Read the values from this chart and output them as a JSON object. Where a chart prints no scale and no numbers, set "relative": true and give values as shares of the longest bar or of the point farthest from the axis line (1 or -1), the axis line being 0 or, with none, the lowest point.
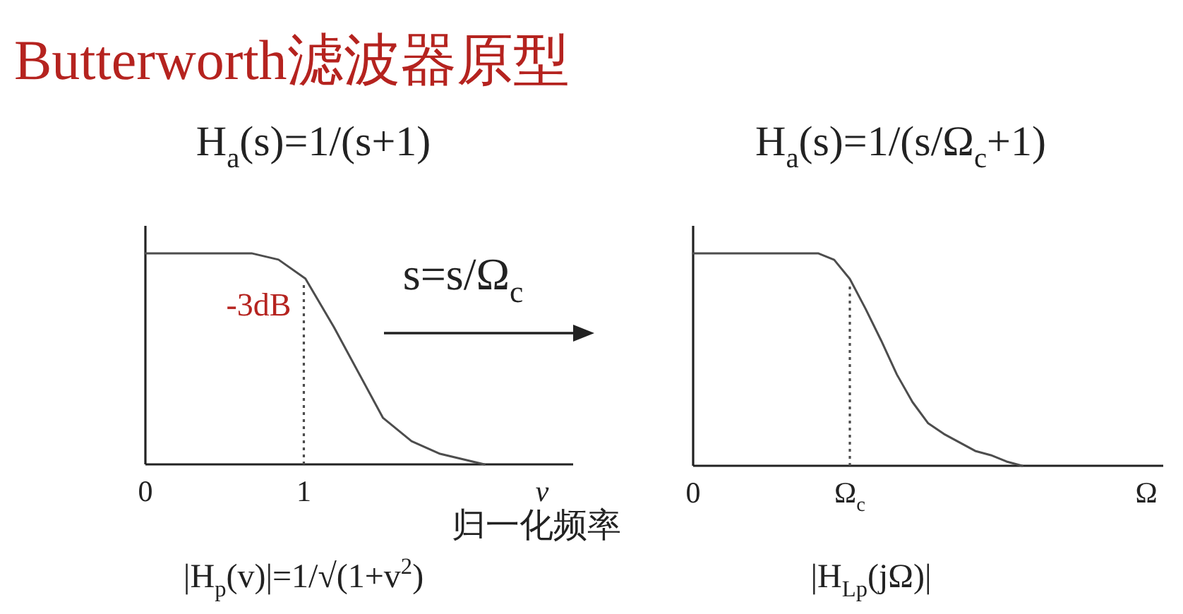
{
  "chart_data": [
    {
      "type": "line",
      "title": "Butterworth滤波器原型",
      "subtitle": "H$_{a}$(s)=1/(s+1)",
      "xlabel": "v",
      "x": [
        0,
        0.67,
        0.84,
        1.01,
        1.19,
        1.5,
        1.68,
        1.86,
        2.14
      ],
      "values": [
        1,
        1,
        0.97,
        0.88,
        0.65,
        0.22,
        0.11,
        0.05,
        0
      ],
      "color": "#4d4d4d",
      "relative": true,
      "xlim": [
        0,
        2.7
      ],
      "xticks": [
        0,
        1
      ],
      "ref_lines": [
        {
          "axis": "x",
          "value": 1,
          "label": "-3dB",
          "line_style": "dotted",
          "color": "#4d4d4d"
        }
      ],
      "annotations": [
        "s=s/Ω$_{c}$",
        "归一化频率",
        "|H$_{p}$(v)|=1/√(1+v$^{2}$)"
      ]
    },
    {
      "type": "line",
      "subtitle": "H$_{a}$(s)=1/(s/Ω$_{c}$+1)",
      "xlabel": "Ω",
      "categories": [
        "0",
        null,
        null,
        null,
        null,
        null,
        null,
        null,
        null,
        null,
        "Ω$_{c}$",
        null,
        null,
        null,
        null,
        null,
        null,
        null,
        null,
        null,
        null,
        null,
        null,
        null,
        null,
        null,
        null,
        null,
        null,
        null,
        null
      ],
      "values": [
        1,
        1,
        1,
        1,
        1,
        1,
        1,
        1,
        1,
        0.97,
        0.88,
        0.74,
        0.59,
        0.43,
        0.3,
        0.2,
        0.15,
        0.11,
        0.07,
        0.05,
        0.02,
        0,
        null,
        null,
        null,
        null,
        null,
        null,
        null,
        null,
        null
      ],
      "color": "#4d4d4d",
      "relative": true,
      "ref_lines": [
        {
          "axis": "x",
          "value": "Ω$_{c}$",
          "line_style": "dotted",
          "color": "#4d4d4d"
        }
      ],
      "annotations": [
        "|H$_{Lp}$(jΩ)|"
      ]
    }
  ]
}
